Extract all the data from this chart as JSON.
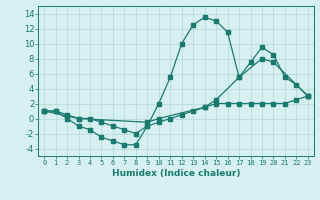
{
  "title": "",
  "xlabel": "Humidex (Indice chaleur)",
  "ylabel": "",
  "background_color": "#d6efef",
  "line_color": "#1a7a6e",
  "grid_color": "#b0d8d8",
  "xlim": [
    -0.5,
    23.5
  ],
  "ylim": [
    -5,
    15
  ],
  "xticks": [
    0,
    1,
    2,
    3,
    4,
    5,
    6,
    7,
    8,
    9,
    10,
    11,
    12,
    13,
    14,
    15,
    16,
    17,
    18,
    19,
    20,
    21,
    22,
    23
  ],
  "yticks": [
    -4,
    -2,
    0,
    2,
    4,
    6,
    8,
    10,
    12,
    14
  ],
  "line1_x": [
    0,
    1,
    2,
    3,
    4,
    5,
    6,
    7,
    8,
    9,
    10,
    11,
    12,
    13,
    14,
    15,
    16,
    17,
    18,
    19,
    20,
    21,
    22,
    23
  ],
  "line1_y": [
    1,
    1,
    0,
    -1,
    -1.5,
    -2.5,
    -3,
    -3.5,
    -3.5,
    -1,
    2,
    5.5,
    10,
    12.5,
    13.5,
    13,
    11.5,
    5.5,
    7.5,
    9.5,
    8.5,
    5.5,
    4.5,
    3
  ],
  "line2_x": [
    0,
    1,
    2,
    3,
    4,
    5,
    6,
    7,
    8,
    9,
    10,
    11,
    12,
    13,
    14,
    15,
    16,
    17,
    18,
    19,
    20,
    21,
    22,
    23
  ],
  "line2_y": [
    1,
    1,
    0.5,
    0,
    0,
    -0.5,
    -1,
    -1.5,
    -2,
    -1,
    -0.5,
    0,
    0.5,
    1,
    1.5,
    2,
    2,
    2,
    2,
    2,
    2,
    2,
    2.5,
    3
  ],
  "line3_x": [
    0,
    3,
    9,
    10,
    14,
    15,
    17,
    19,
    20,
    23
  ],
  "line3_y": [
    1,
    0,
    -0.5,
    0,
    1.5,
    2.5,
    5.5,
    8,
    7.5,
    3
  ],
  "marker_size": 2.5,
  "line_width": 0.9,
  "xlabel_fontsize": 6.5,
  "xtick_fontsize": 5,
  "ytick_fontsize": 6
}
